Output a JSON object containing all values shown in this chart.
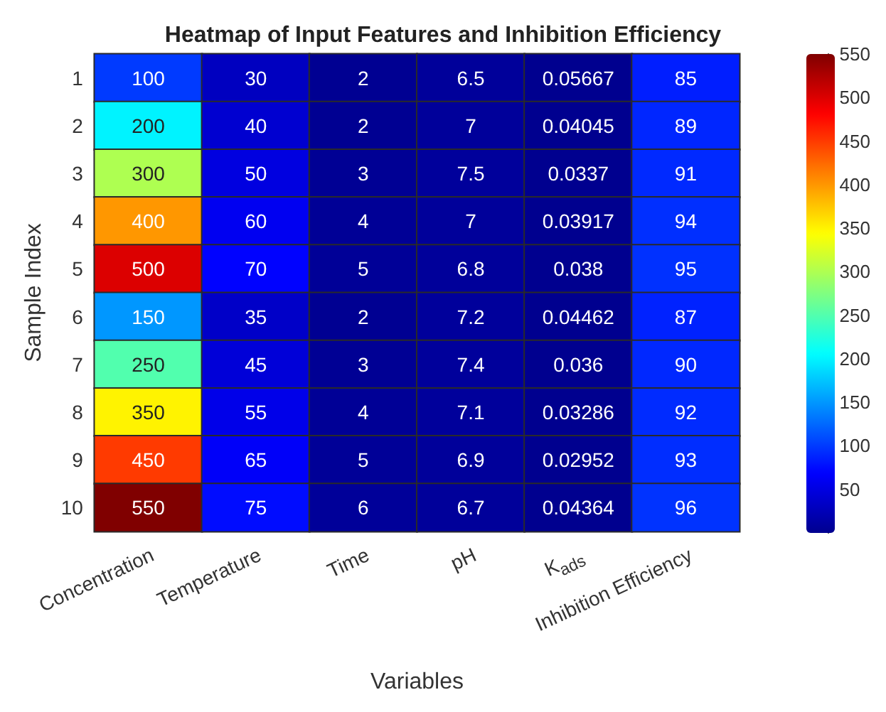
{
  "chart_data": {
    "type": "heatmap",
    "title": "Heatmap of Input Features and Inhibition Efficiency",
    "xlabel": "Variables",
    "ylabel": "Sample Index",
    "categories": [
      "Concentration",
      "Temperature",
      "Time",
      "pH",
      "K$_{ads}$",
      "Inhibition Efficiency"
    ],
    "y_categories": [
      "1",
      "2",
      "3",
      "4",
      "5",
      "6",
      "7",
      "8",
      "9",
      "10"
    ],
    "cells": [
      [
        100,
        30,
        2,
        6.5,
        0.05667,
        85
      ],
      [
        200,
        40,
        2,
        7,
        0.04045,
        89
      ],
      [
        300,
        50,
        3,
        7.5,
        0.0337,
        91
      ],
      [
        400,
        60,
        4,
        7,
        0.03917,
        94
      ],
      [
        500,
        70,
        5,
        6.8,
        0.038,
        95
      ],
      [
        150,
        35,
        2,
        7.2,
        0.04462,
        87
      ],
      [
        250,
        45,
        3,
        7.4,
        0.036,
        90
      ],
      [
        350,
        55,
        4,
        7.1,
        0.03286,
        92
      ],
      [
        450,
        65,
        5,
        6.9,
        0.02952,
        93
      ],
      [
        550,
        75,
        6,
        6.7,
        0.04364,
        96
      ]
    ],
    "data_labels": true,
    "clim": [
      0,
      550
    ],
    "cticks": [
      50,
      100,
      150,
      200,
      250,
      300,
      350,
      400,
      450,
      500,
      550
    ]
  }
}
